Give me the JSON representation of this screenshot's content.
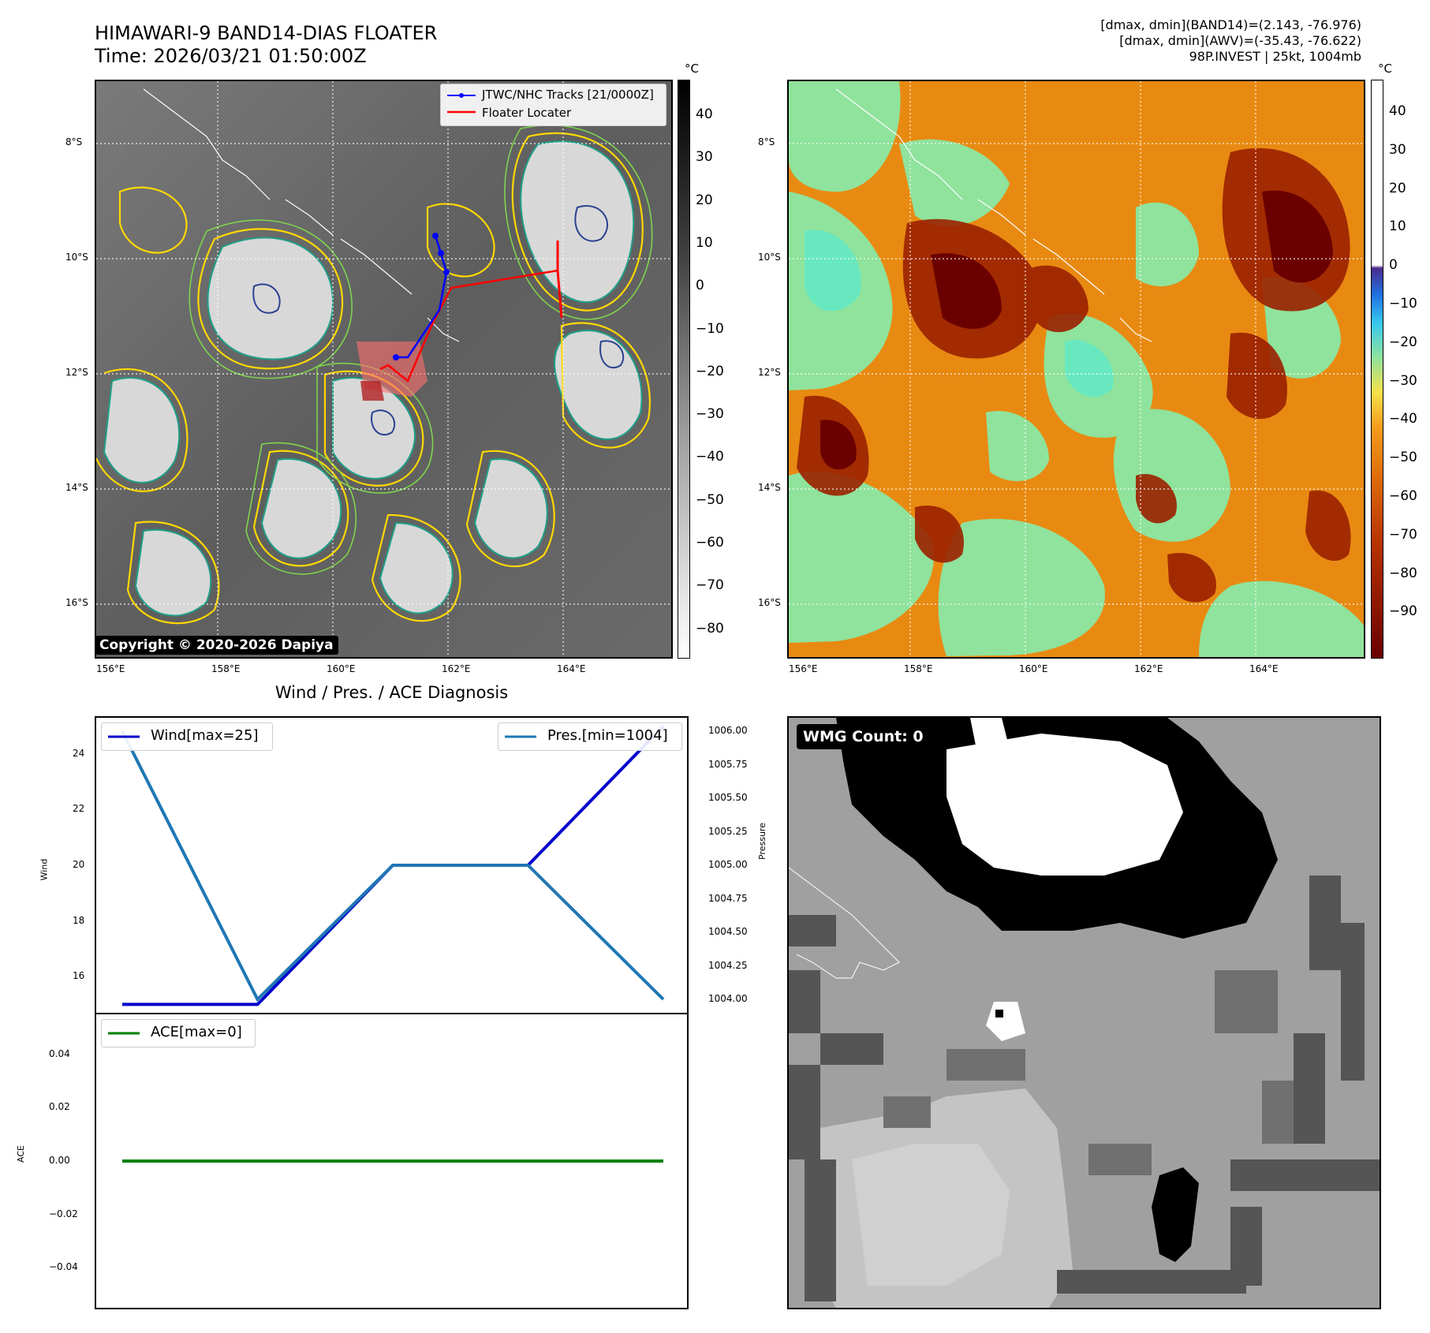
{
  "header": {
    "title_line1": "HIMAWARI-9 BAND14-DIAS FLOATER",
    "title_line2": "Time: 2026/03/21 01:50:00Z",
    "info_line1": "[dmax, dmin](BAND14)=(2.143, -76.976)",
    "info_line2": "[dmax, dmin](AWV)=(-35.43, -76.622)",
    "info_line3": "98P.INVEST | 25kt, 1004mb"
  },
  "map_left": {
    "legend_tracks": "JTWC/NHC Tracks [21/0000Z]",
    "legend_locater": "Floater Locater",
    "copyright": "Copyright © 2020-2026 Dapiya",
    "colorbar_unit": "°C",
    "colorbar_ticks": [
      "40",
      "30",
      "20",
      "10",
      "0",
      "−10",
      "−20",
      "−30",
      "−40",
      "−50",
      "−60",
      "−70",
      "−80"
    ],
    "track_color": "#0000ff",
    "locater_color": "#ff0000"
  },
  "map_right": {
    "colorbar_unit": "°C",
    "colorbar_ticks": [
      "40",
      "30",
      "20",
      "10",
      "0",
      "−10",
      "−20",
      "−30",
      "−40",
      "−50",
      "−60",
      "−70",
      "−80",
      "−90"
    ]
  },
  "map_axes": {
    "lat_labels": [
      "8°S",
      "10°S",
      "12°S",
      "14°S",
      "16°S"
    ],
    "lon_labels": [
      "156°E",
      "158°E",
      "160°E",
      "162°E",
      "164°E"
    ]
  },
  "diagnosis_title": "Wind / Pres. / ACE Diagnosis",
  "wmg": {
    "label": "WMG Count: 0"
  },
  "chart_data": [
    {
      "type": "line",
      "title": "Wind / Pres. / ACE Diagnosis",
      "ylabel": "Wind",
      "ylim": [
        14.7,
        25.3
      ],
      "yticks": [
        "24",
        "22",
        "20",
        "18",
        "16"
      ],
      "series": [
        {
          "name": "Wind[max=25]",
          "color": "#0000cc",
          "values": [
            15,
            15,
            20,
            20,
            25
          ]
        }
      ]
    },
    {
      "type": "line",
      "ylabel": "Pressure",
      "ylim": [
        1003.9,
        1006.1
      ],
      "yticks": [
        "1006.00",
        "1005.75",
        "1005.50",
        "1005.25",
        "1005.00",
        "1004.75",
        "1004.50",
        "1004.25",
        "1004.00"
      ],
      "series": [
        {
          "name": "Pres.[min=1004]",
          "color": "#1f77b4",
          "values": [
            1006,
            1004,
            1005,
            1005,
            1004
          ]
        }
      ]
    },
    {
      "type": "line",
      "ylabel": "ACE",
      "ylim": [
        -0.055,
        0.055
      ],
      "yticks": [
        "0.04",
        "0.02",
        "0.00",
        "−0.02",
        "−0.04"
      ],
      "series": [
        {
          "name": "ACE[max=0]",
          "color": "#008000",
          "values": [
            0,
            0,
            0,
            0,
            0
          ]
        }
      ]
    }
  ]
}
